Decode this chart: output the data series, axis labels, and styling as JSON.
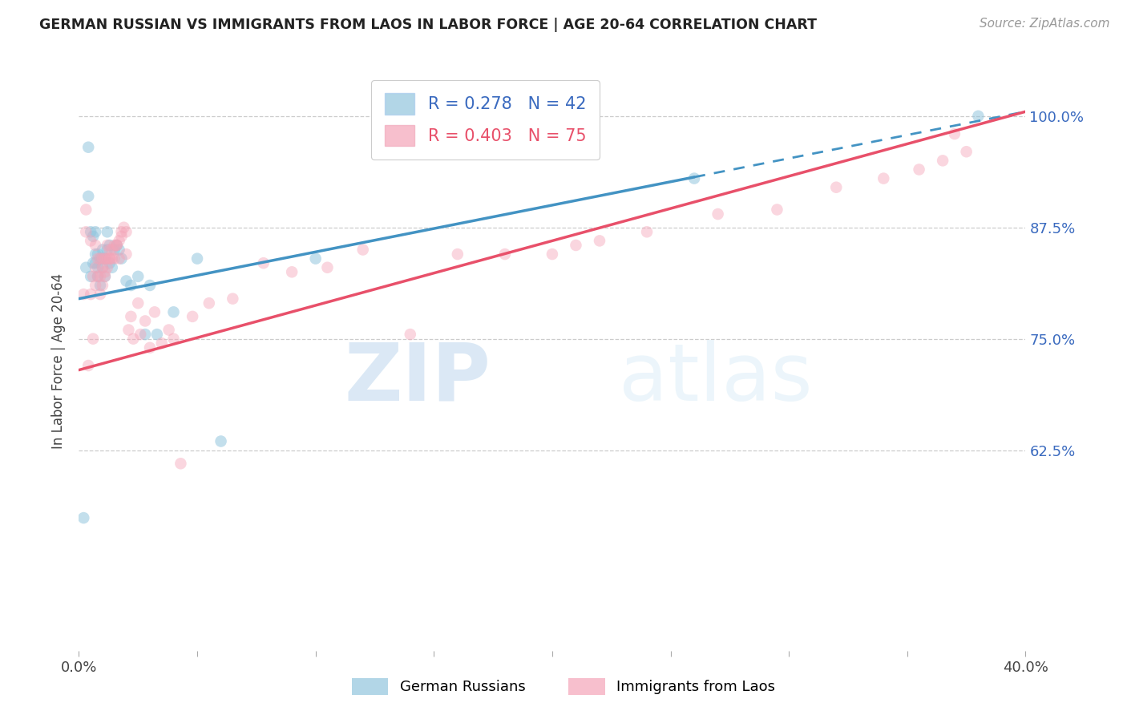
{
  "title": "GERMAN RUSSIAN VS IMMIGRANTS FROM LAOS IN LABOR FORCE | AGE 20-64 CORRELATION CHART",
  "source": "Source: ZipAtlas.com",
  "ylabel": "In Labor Force | Age 20-64",
  "xlim": [
    0.0,
    0.4
  ],
  "ylim": [
    0.4,
    1.05
  ],
  "yticks": [
    0.625,
    0.75,
    0.875,
    1.0
  ],
  "yticklabels": [
    "62.5%",
    "75.0%",
    "87.5%",
    "100.0%"
  ],
  "R_blue": 0.278,
  "N_blue": 42,
  "R_pink": 0.403,
  "N_pink": 75,
  "blue_color": "#92c5de",
  "pink_color": "#f4a5b8",
  "line_blue_color": "#4393c3",
  "line_pink_color": "#e8506a",
  "label_blue": "German Russians",
  "label_pink": "Immigrants from Laos",
  "watermark_zip": "ZIP",
  "watermark_atlas": "atlas",
  "blue_line_x0": 0.0,
  "blue_line_y0": 0.795,
  "blue_line_x1": 0.4,
  "blue_line_y1": 1.005,
  "blue_line_dashed_x0": 0.26,
  "blue_line_dashed_x1": 0.4,
  "pink_line_x0": 0.0,
  "pink_line_y0": 0.715,
  "pink_line_x1": 0.4,
  "pink_line_y1": 1.005,
  "blue_scatter_x": [
    0.002,
    0.003,
    0.004,
    0.004,
    0.005,
    0.005,
    0.006,
    0.006,
    0.007,
    0.007,
    0.007,
    0.008,
    0.008,
    0.008,
    0.009,
    0.009,
    0.01,
    0.01,
    0.01,
    0.011,
    0.011,
    0.012,
    0.012,
    0.013,
    0.013,
    0.014,
    0.015,
    0.016,
    0.017,
    0.018,
    0.02,
    0.022,
    0.025,
    0.028,
    0.03,
    0.033,
    0.04,
    0.05,
    0.06,
    0.1,
    0.26,
    0.38
  ],
  "blue_scatter_y": [
    0.549,
    0.83,
    0.965,
    0.91,
    0.82,
    0.87,
    0.865,
    0.835,
    0.845,
    0.87,
    0.835,
    0.82,
    0.845,
    0.83,
    0.84,
    0.81,
    0.84,
    0.85,
    0.83,
    0.84,
    0.82,
    0.85,
    0.87,
    0.855,
    0.835,
    0.83,
    0.85,
    0.855,
    0.85,
    0.84,
    0.815,
    0.81,
    0.82,
    0.755,
    0.81,
    0.755,
    0.78,
    0.84,
    0.635,
    0.84,
    0.93,
    1.0
  ],
  "pink_scatter_x": [
    0.002,
    0.003,
    0.003,
    0.004,
    0.005,
    0.005,
    0.006,
    0.006,
    0.007,
    0.007,
    0.007,
    0.008,
    0.008,
    0.009,
    0.009,
    0.009,
    0.01,
    0.01,
    0.01,
    0.011,
    0.011,
    0.011,
    0.012,
    0.012,
    0.012,
    0.013,
    0.013,
    0.013,
    0.014,
    0.014,
    0.015,
    0.015,
    0.016,
    0.016,
    0.017,
    0.017,
    0.018,
    0.018,
    0.019,
    0.02,
    0.02,
    0.021,
    0.022,
    0.023,
    0.025,
    0.026,
    0.028,
    0.03,
    0.032,
    0.035,
    0.038,
    0.04,
    0.043,
    0.048,
    0.055,
    0.065,
    0.078,
    0.09,
    0.105,
    0.12,
    0.14,
    0.16,
    0.18,
    0.2,
    0.21,
    0.22,
    0.24,
    0.27,
    0.295,
    0.32,
    0.34,
    0.355,
    0.365,
    0.375,
    0.37
  ],
  "pink_scatter_y": [
    0.8,
    0.87,
    0.895,
    0.72,
    0.8,
    0.86,
    0.75,
    0.82,
    0.83,
    0.81,
    0.855,
    0.82,
    0.84,
    0.8,
    0.82,
    0.84,
    0.81,
    0.83,
    0.84,
    0.825,
    0.84,
    0.82,
    0.84,
    0.855,
    0.83,
    0.85,
    0.84,
    0.84,
    0.85,
    0.84,
    0.855,
    0.84,
    0.855,
    0.855,
    0.86,
    0.84,
    0.865,
    0.87,
    0.875,
    0.845,
    0.87,
    0.76,
    0.775,
    0.75,
    0.79,
    0.755,
    0.77,
    0.74,
    0.78,
    0.745,
    0.76,
    0.75,
    0.61,
    0.775,
    0.79,
    0.795,
    0.835,
    0.825,
    0.83,
    0.85,
    0.755,
    0.845,
    0.845,
    0.845,
    0.855,
    0.86,
    0.87,
    0.89,
    0.895,
    0.92,
    0.93,
    0.94,
    0.95,
    0.96,
    0.98
  ]
}
